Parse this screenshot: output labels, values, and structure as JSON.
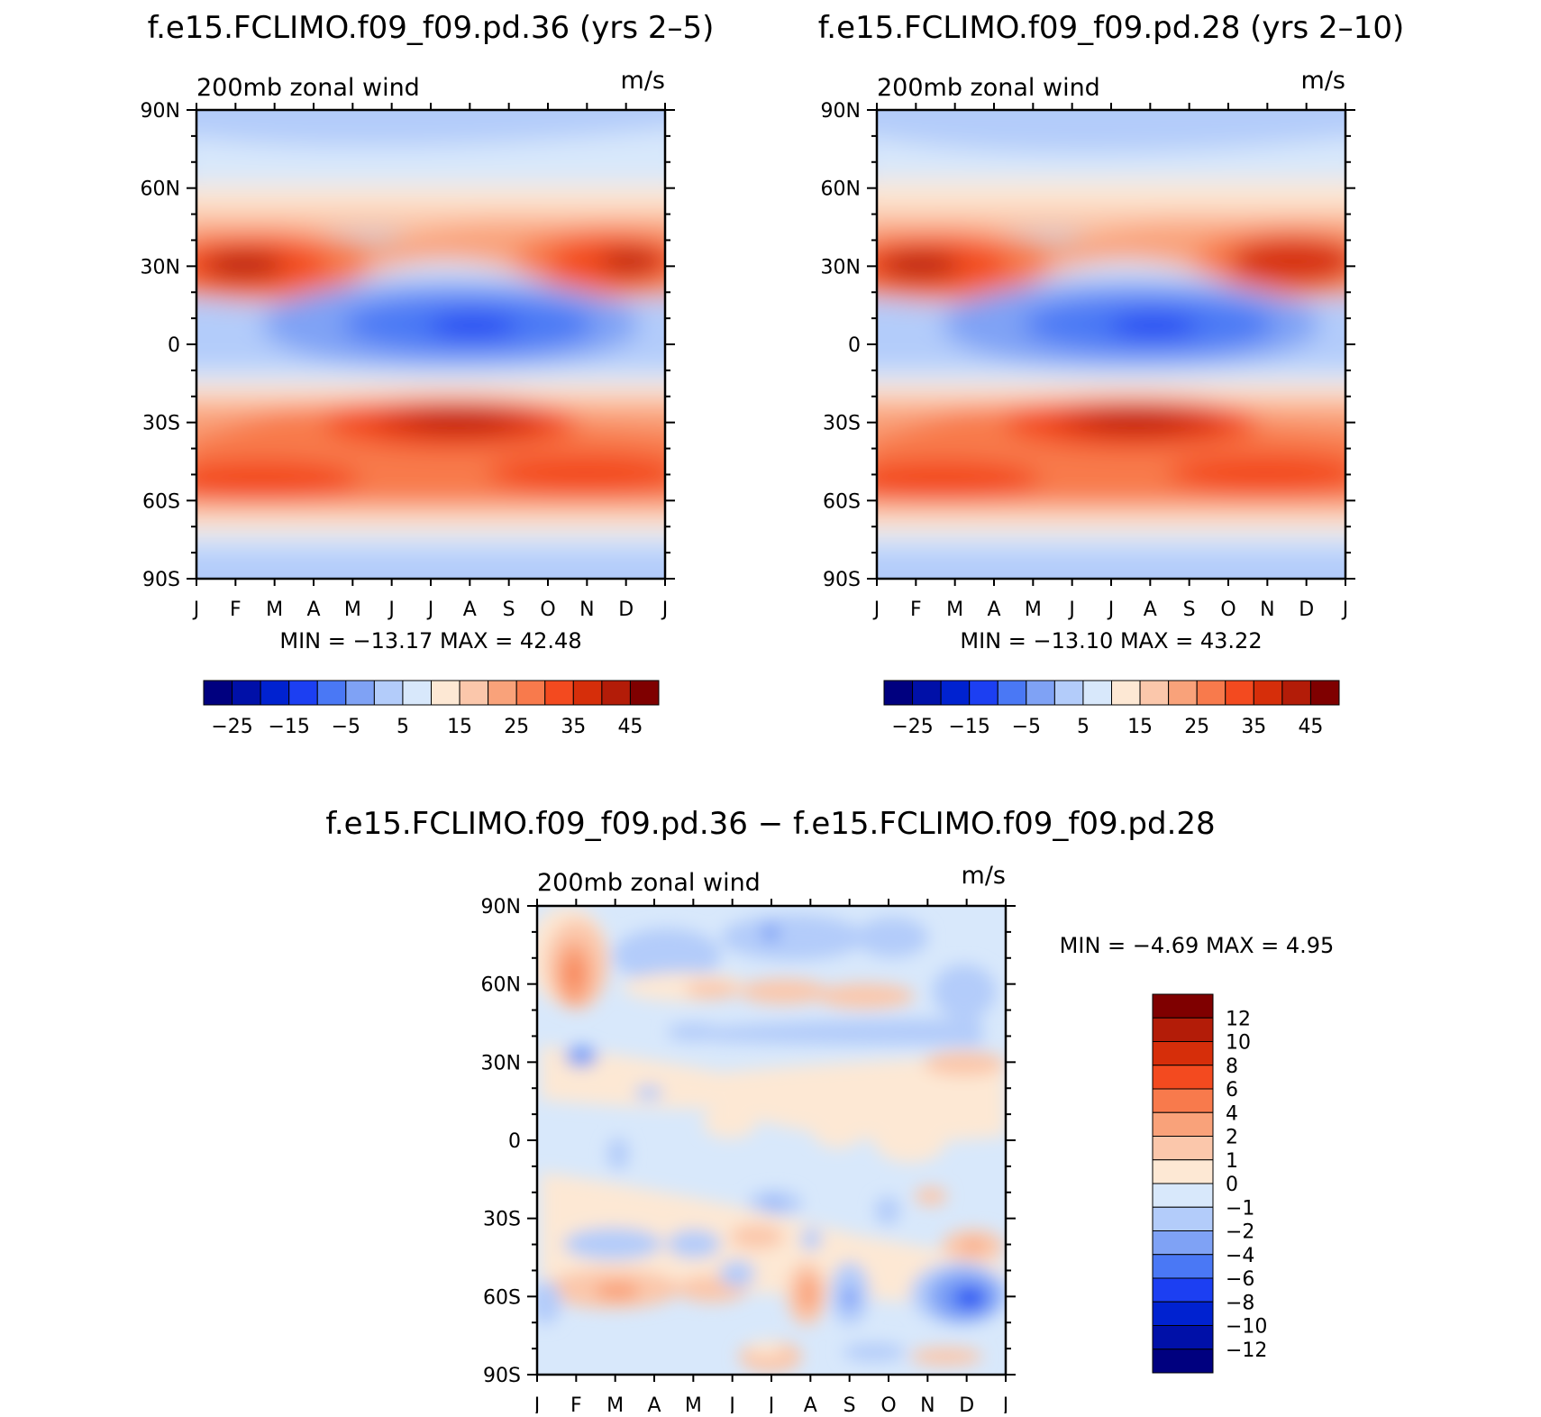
{
  "panels": [
    {
      "title": "f.e15.FCLIMO.f09_f09.pd.36 (yrs 2–5)",
      "subtitle": "200mb zonal wind",
      "units": "m/s",
      "minmax": "MIN = −13.17 MAX =   42.48"
    },
    {
      "title": "f.e15.FCLIMO.f09_f09.pd.28 (yrs 2–10)",
      "subtitle": "200mb zonal wind",
      "units": "m/s",
      "minmax": "MIN = −13.10 MAX =   43.22"
    },
    {
      "title": "f.e15.FCLIMO.f09_f09.pd.36 − f.e15.FCLIMO.f09_f09.pd.28",
      "subtitle": "200mb zonal wind",
      "units": "m/s",
      "minmax": "MIN =   −4.69 MAX =    4.95"
    }
  ],
  "chart_data": [
    {
      "type": "heatmap",
      "title": "f.e15.FCLIMO.f09_f09.pd.36 (yrs 2–5)",
      "subtitle": "200mb zonal wind",
      "units": "m/s",
      "x_ticks": [
        "J",
        "F",
        "M",
        "A",
        "M",
        "J",
        "J",
        "A",
        "S",
        "O",
        "N",
        "D",
        "J"
      ],
      "y_ticks": [
        "90N",
        "60N",
        "30N",
        "0",
        "30S",
        "60S",
        "90S"
      ],
      "colorbar_labels": [
        "−25",
        "−15",
        "−5",
        "5",
        "15",
        "25",
        "35",
        "45"
      ],
      "colorbar_colors": [
        "#00007f",
        "#0010a8",
        "#0022d0",
        "#1c3ff2",
        "#4a78f5",
        "#7fa2f5",
        "#b3ccfa",
        "#d8e8fb",
        "#fde8d4",
        "#fbc7ab",
        "#f9a27a",
        "#f87a4c",
        "#f34a1f",
        "#d62e0a",
        "#b31c08",
        "#7f0000"
      ],
      "min": -13.17,
      "max": 42.48
    },
    {
      "type": "heatmap",
      "title": "f.e15.FCLIMO.f09_f09.pd.28 (yrs 2–10)",
      "subtitle": "200mb zonal wind",
      "units": "m/s",
      "x_ticks": [
        "J",
        "F",
        "M",
        "A",
        "M",
        "J",
        "J",
        "A",
        "S",
        "O",
        "N",
        "D",
        "J"
      ],
      "y_ticks": [
        "90N",
        "60N",
        "30N",
        "0",
        "30S",
        "60S",
        "90S"
      ],
      "colorbar_labels": [
        "−25",
        "−15",
        "−5",
        "5",
        "15",
        "25",
        "35",
        "45"
      ],
      "colorbar_colors": [
        "#00007f",
        "#0010a8",
        "#0022d0",
        "#1c3ff2",
        "#4a78f5",
        "#7fa2f5",
        "#b3ccfa",
        "#d8e8fb",
        "#fde8d4",
        "#fbc7ab",
        "#f9a27a",
        "#f87a4c",
        "#f34a1f",
        "#d62e0a",
        "#b31c08",
        "#7f0000"
      ],
      "min": -13.1,
      "max": 43.22
    },
    {
      "type": "heatmap",
      "title": "f.e15.FCLIMO.f09_f09.pd.36 − f.e15.FCLIMO.f09_f09.pd.28",
      "subtitle": "200mb zonal wind",
      "units": "m/s",
      "x_ticks": [
        "J",
        "F",
        "M",
        "A",
        "M",
        "J",
        "J",
        "A",
        "S",
        "O",
        "N",
        "D",
        "J"
      ],
      "y_ticks": [
        "90N",
        "60N",
        "30N",
        "0",
        "30S",
        "60S",
        "90S"
      ],
      "colorbar_labels": [
        "12",
        "10",
        "8",
        "6",
        "4",
        "2",
        "1",
        "0",
        "−1",
        "−2",
        "−4",
        "−6",
        "−8",
        "−10",
        "−12"
      ],
      "colorbar_colors": [
        "#7f0000",
        "#b31c08",
        "#d62e0a",
        "#f34a1f",
        "#f87a4c",
        "#f9a27a",
        "#fbc7ab",
        "#fde8d4",
        "#d8e8fb",
        "#b3ccfa",
        "#7fa2f5",
        "#4a78f5",
        "#1c3ff2",
        "#0022d0",
        "#0010a8",
        "#00007f"
      ],
      "min": -4.69,
      "max": 4.95
    }
  ]
}
